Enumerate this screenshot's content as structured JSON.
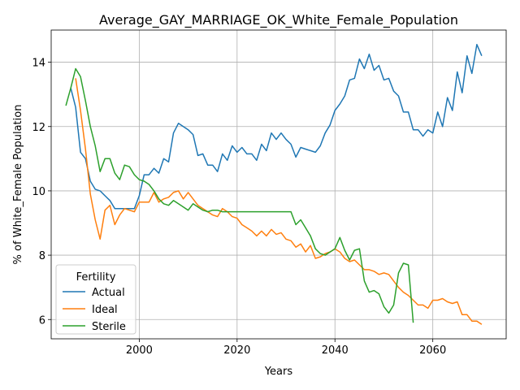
{
  "chart_data": {
    "type": "line",
    "title": "Average_GAY_MARRIAGE_OK_White_Female_Population",
    "xlabel": "Years",
    "ylabel": "% of White_Female Population",
    "xlim": [
      1982,
      2075
    ],
    "ylim": [
      5.4,
      15.0
    ],
    "xticks": [
      2000,
      2020,
      2040,
      2060
    ],
    "yticks": [
      6,
      8,
      10,
      12,
      14
    ],
    "grid": true,
    "legend": {
      "title": "Fertility",
      "placement": "lower-left"
    },
    "series": [
      {
        "name": "Actual",
        "color": "#1f77b4",
        "x": [
          1986,
          1987,
          1988,
          1989,
          1990,
          1991,
          1992,
          1993,
          1994,
          1995,
          1996,
          1997,
          1998,
          1999,
          2000,
          2001,
          2002,
          2003,
          2004,
          2005,
          2006,
          2007,
          2008,
          2009,
          2010,
          2011,
          2012,
          2013,
          2014,
          2015,
          2016,
          2017,
          2018,
          2019,
          2020,
          2021,
          2022,
          2023,
          2024,
          2025,
          2026,
          2027,
          2028,
          2029,
          2030,
          2031,
          2032,
          2033,
          2034,
          2035,
          2036,
          2037,
          2038,
          2039,
          2040,
          2041,
          2042,
          2043,
          2044,
          2045,
          2046,
          2047,
          2048,
          2049,
          2050,
          2051,
          2052,
          2053,
          2054,
          2055,
          2056,
          2057,
          2058,
          2059,
          2060,
          2061,
          2062,
          2063,
          2064,
          2065,
          2066,
          2067,
          2068,
          2069,
          2070
        ],
        "y": [
          13.2,
          12.6,
          11.2,
          11.0,
          10.3,
          10.05,
          10.0,
          9.85,
          9.7,
          9.45,
          9.45,
          9.45,
          9.45,
          9.45,
          9.85,
          10.5,
          10.5,
          10.7,
          10.55,
          11.0,
          10.9,
          11.8,
          12.1,
          12.0,
          11.9,
          11.75,
          11.1,
          11.15,
          10.8,
          10.8,
          10.6,
          11.15,
          10.95,
          11.4,
          11.2,
          11.35,
          11.15,
          11.15,
          10.95,
          11.45,
          11.25,
          11.8,
          11.6,
          11.8,
          11.6,
          11.45,
          11.05,
          11.35,
          11.3,
          11.25,
          11.2,
          11.4,
          11.8,
          12.05,
          12.5,
          12.7,
          12.95,
          13.45,
          13.5,
          14.1,
          13.8,
          14.25,
          13.75,
          13.9,
          13.45,
          13.5,
          13.1,
          12.95,
          12.45,
          12.45,
          11.9,
          11.9,
          11.7,
          11.9,
          11.8,
          12.45,
          12.0,
          12.9,
          12.5,
          13.7,
          13.05,
          14.2,
          13.65,
          14.55,
          14.2
        ]
      },
      {
        "name": "Ideal",
        "color": "#ff7f0e",
        "x": [
          1987,
          1988,
          1989,
          1990,
          1991,
          1992,
          1993,
          1994,
          1995,
          1996,
          1997,
          1998,
          1999,
          2000,
          2001,
          2002,
          2003,
          2004,
          2005,
          2006,
          2007,
          2008,
          2009,
          2010,
          2011,
          2012,
          2013,
          2014,
          2015,
          2016,
          2017,
          2018,
          2019,
          2020,
          2021,
          2022,
          2023,
          2024,
          2025,
          2026,
          2027,
          2028,
          2029,
          2030,
          2031,
          2032,
          2033,
          2034,
          2035,
          2036,
          2037,
          2038,
          2039,
          2040,
          2041,
          2042,
          2043,
          2044,
          2045,
          2046,
          2047,
          2048,
          2049,
          2050,
          2051,
          2052,
          2053,
          2054,
          2055,
          2056,
          2057,
          2058,
          2059,
          2060,
          2061,
          2062,
          2063,
          2064,
          2065,
          2066,
          2067,
          2068,
          2069,
          2070
        ],
        "y": [
          13.5,
          12.5,
          11.3,
          9.9,
          9.1,
          8.5,
          9.4,
          9.55,
          8.95,
          9.25,
          9.45,
          9.4,
          9.35,
          9.65,
          9.65,
          9.65,
          9.95,
          9.65,
          9.75,
          9.8,
          9.95,
          10.0,
          9.75,
          9.95,
          9.75,
          9.55,
          9.45,
          9.35,
          9.25,
          9.2,
          9.45,
          9.35,
          9.2,
          9.15,
          8.95,
          8.85,
          8.75,
          8.6,
          8.75,
          8.6,
          8.8,
          8.65,
          8.7,
          8.5,
          8.45,
          8.25,
          8.35,
          8.1,
          8.3,
          7.9,
          7.95,
          8.05,
          8.1,
          8.2,
          8.1,
          7.9,
          7.8,
          7.85,
          7.7,
          7.55,
          7.55,
          7.5,
          7.4,
          7.45,
          7.4,
          7.2,
          7.0,
          6.85,
          6.75,
          6.6,
          6.45,
          6.45,
          6.35,
          6.6,
          6.6,
          6.65,
          6.55,
          6.5,
          6.55,
          6.15,
          6.15,
          5.95,
          5.95,
          5.85
        ]
      },
      {
        "name": "Sterile",
        "color": "#2ca02c",
        "x": [
          1985,
          1986,
          1987,
          1988,
          1989,
          1990,
          1991,
          1992,
          1993,
          1994,
          1995,
          1996,
          1997,
          1998,
          1999,
          2000,
          2001,
          2002,
          2003,
          2004,
          2005,
          2006,
          2007,
          2008,
          2009,
          2010,
          2011,
          2012,
          2013,
          2014,
          2015,
          2016,
          2017,
          2018,
          2019,
          2020,
          2021,
          2022,
          2023,
          2024,
          2025,
          2026,
          2027,
          2028,
          2029,
          2030,
          2031,
          2032,
          2033,
          2034,
          2035,
          2036,
          2037,
          2038,
          2039,
          2040,
          2041,
          2042,
          2043,
          2044,
          2045,
          2046,
          2047,
          2048,
          2049,
          2050,
          2051,
          2052,
          2053,
          2054,
          2055,
          2056
        ],
        "y": [
          12.65,
          13.2,
          13.8,
          13.55,
          12.8,
          12.0,
          11.4,
          10.6,
          11.0,
          11.0,
          10.55,
          10.35,
          10.8,
          10.75,
          10.5,
          10.35,
          10.3,
          10.2,
          10.0,
          9.75,
          9.6,
          9.55,
          9.7,
          9.6,
          9.5,
          9.4,
          9.6,
          9.5,
          9.4,
          9.35,
          9.4,
          9.4,
          9.35,
          9.35,
          9.35,
          9.35,
          9.35,
          9.35,
          9.35,
          9.35,
          9.35,
          9.35,
          9.35,
          9.35,
          9.35,
          9.35,
          9.35,
          8.95,
          9.1,
          8.85,
          8.6,
          8.2,
          8.05,
          8.0,
          8.1,
          8.2,
          8.55,
          8.15,
          7.85,
          8.15,
          8.2,
          7.2,
          6.85,
          6.9,
          6.8,
          6.4,
          6.2,
          6.45,
          7.45,
          7.75,
          7.7,
          5.9
        ]
      }
    ]
  }
}
